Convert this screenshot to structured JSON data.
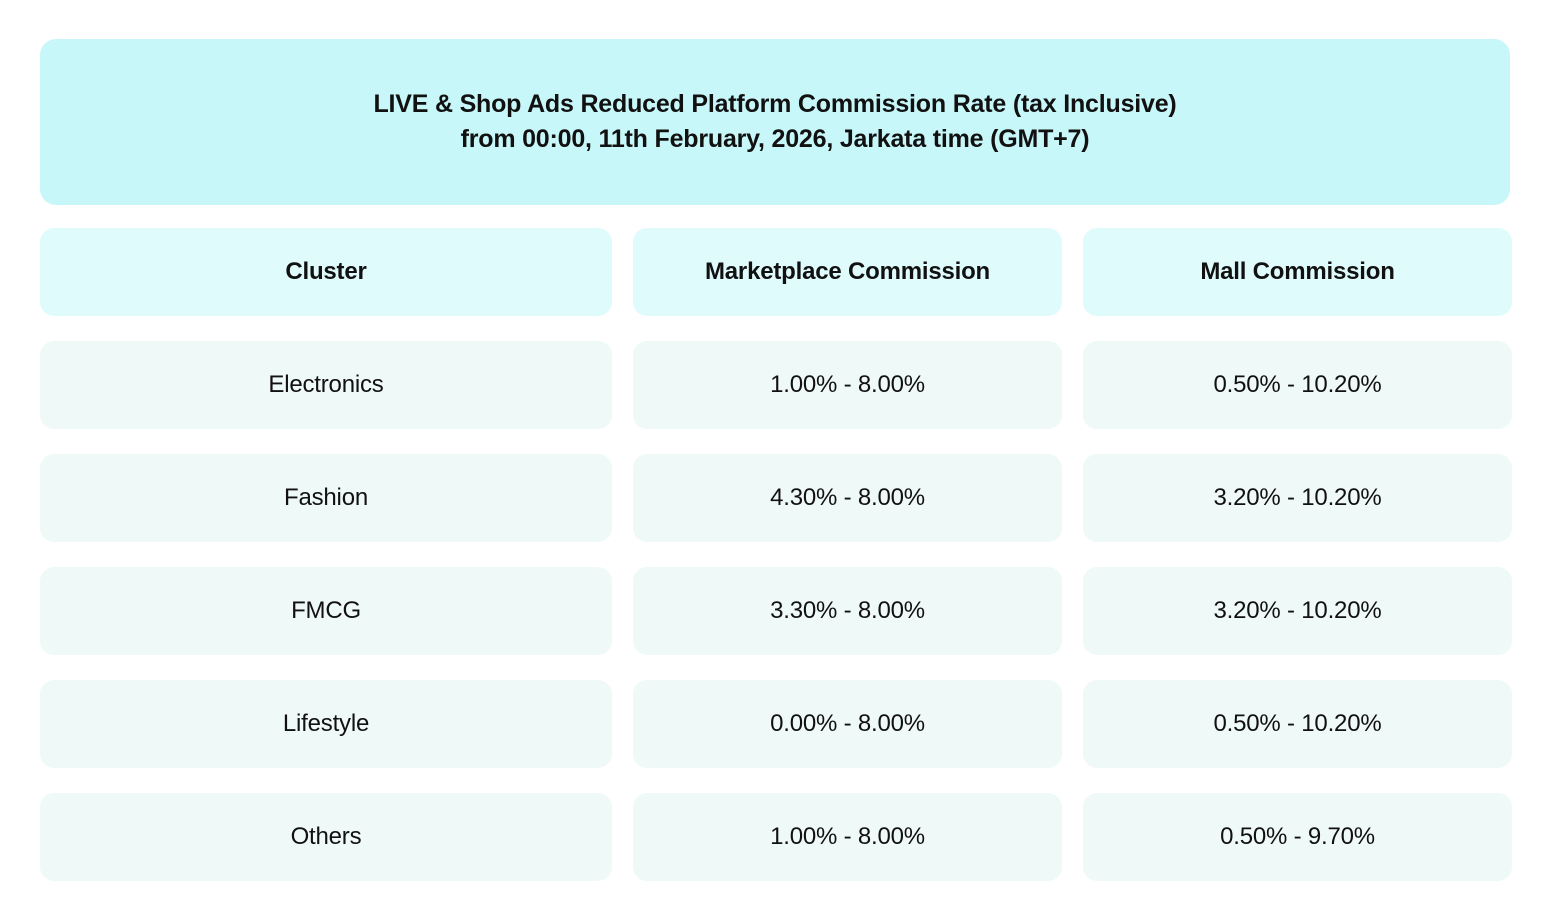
{
  "banner": {
    "title_line1": "LIVE & Shop Ads Reduced Platform Commission Rate (tax Inclusive)",
    "title_line2": "from 00:00, 11th February, 2026, Jarkata time (GMT+7)"
  },
  "table": {
    "columns": [
      "Cluster",
      "Marketplace Commission",
      "Mall Commission"
    ],
    "rows": [
      {
        "cluster": "Electronics",
        "marketplace": "1.00% - 8.00%",
        "mall": "0.50% - 10.20%"
      },
      {
        "cluster": "Fashion",
        "marketplace": "4.30% - 8.00%",
        "mall": "3.20% - 10.20%"
      },
      {
        "cluster": "FMCG",
        "marketplace": "3.30% - 8.00%",
        "mall": "3.20% - 10.20%"
      },
      {
        "cluster": "Lifestyle",
        "marketplace": "0.00% - 8.00%",
        "mall": "0.50% - 10.20%"
      },
      {
        "cluster": "Others",
        "marketplace": "1.00% - 8.00%",
        "mall": "0.50% - 9.70%"
      }
    ]
  },
  "colors": {
    "page_bg": "#ffffff",
    "banner_bg": "#c8f7f9",
    "header_bg": "#dffbfc",
    "row_bg": "#eff9f7",
    "text": "#111111"
  },
  "chart_data": {
    "type": "table",
    "title": "LIVE & Shop Ads Reduced Platform Commission Rate (tax Inclusive) from 00:00, 11th February, 2026, Jarkata time (GMT+7)",
    "columns": [
      "Cluster",
      "Marketplace Commission",
      "Mall Commission"
    ],
    "rows": [
      [
        "Electronics",
        "1.00% - 8.00%",
        "0.50% - 10.20%"
      ],
      [
        "Fashion",
        "4.30% - 8.00%",
        "3.20% - 10.20%"
      ],
      [
        "FMCG",
        "3.30% - 8.00%",
        "3.20% - 10.20%"
      ],
      [
        "Lifestyle",
        "0.00% - 8.00%",
        "0.50% - 10.20%"
      ],
      [
        "Others",
        "1.00% - 8.00%",
        "0.50% - 9.70%"
      ]
    ]
  }
}
